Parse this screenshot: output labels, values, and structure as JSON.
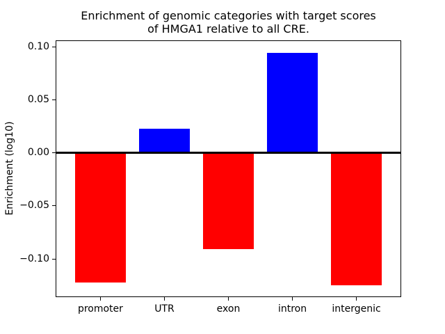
{
  "title": "Enrichment of genomic categories with target scores\nof HMGA1 relative to all CRE.",
  "chart_data": {
    "type": "bar",
    "title": "Enrichment of genomic categories with target scores\nof HMGA1 relative to all CRE.",
    "categories": [
      "promoter",
      "UTR",
      "exon",
      "intron",
      "intergenic"
    ],
    "values": [
      -0.122,
      0.023,
      -0.091,
      0.094,
      -0.125
    ],
    "bar_colors": [
      "#ff0000",
      "#0000ff",
      "#ff0000",
      "#0000ff",
      "#ff0000"
    ],
    "positive_color": "#0000ff",
    "negative_color": "#ff0000",
    "xlabel": "",
    "ylabel": "Enrichment (log10)",
    "ylim": [
      -0.136,
      0.106
    ],
    "yticks": [
      0.1,
      0.05,
      0.0,
      -0.05,
      -0.1
    ],
    "ytick_labels": [
      "0.10",
      "0.05",
      "0.00",
      "−0.05",
      "−0.10"
    ],
    "zero_line": true,
    "zero_line_color": "#000000",
    "grid": false,
    "legend": null,
    "background": "#ffffff",
    "bar_relative_width": 0.8
  }
}
